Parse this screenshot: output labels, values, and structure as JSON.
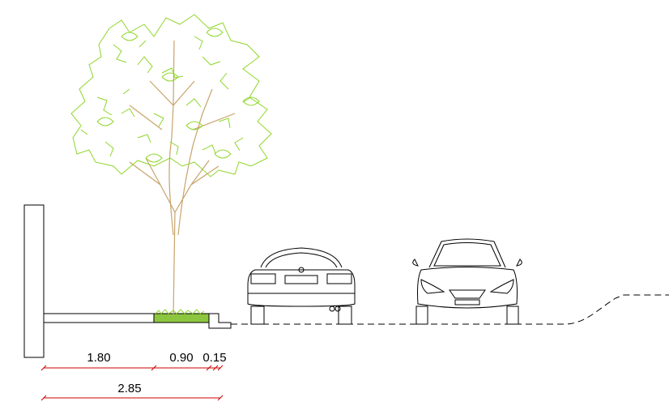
{
  "dimensions": {
    "segments": [
      "1.80",
      "0.90",
      "0.15"
    ],
    "total": "2.85"
  }
}
